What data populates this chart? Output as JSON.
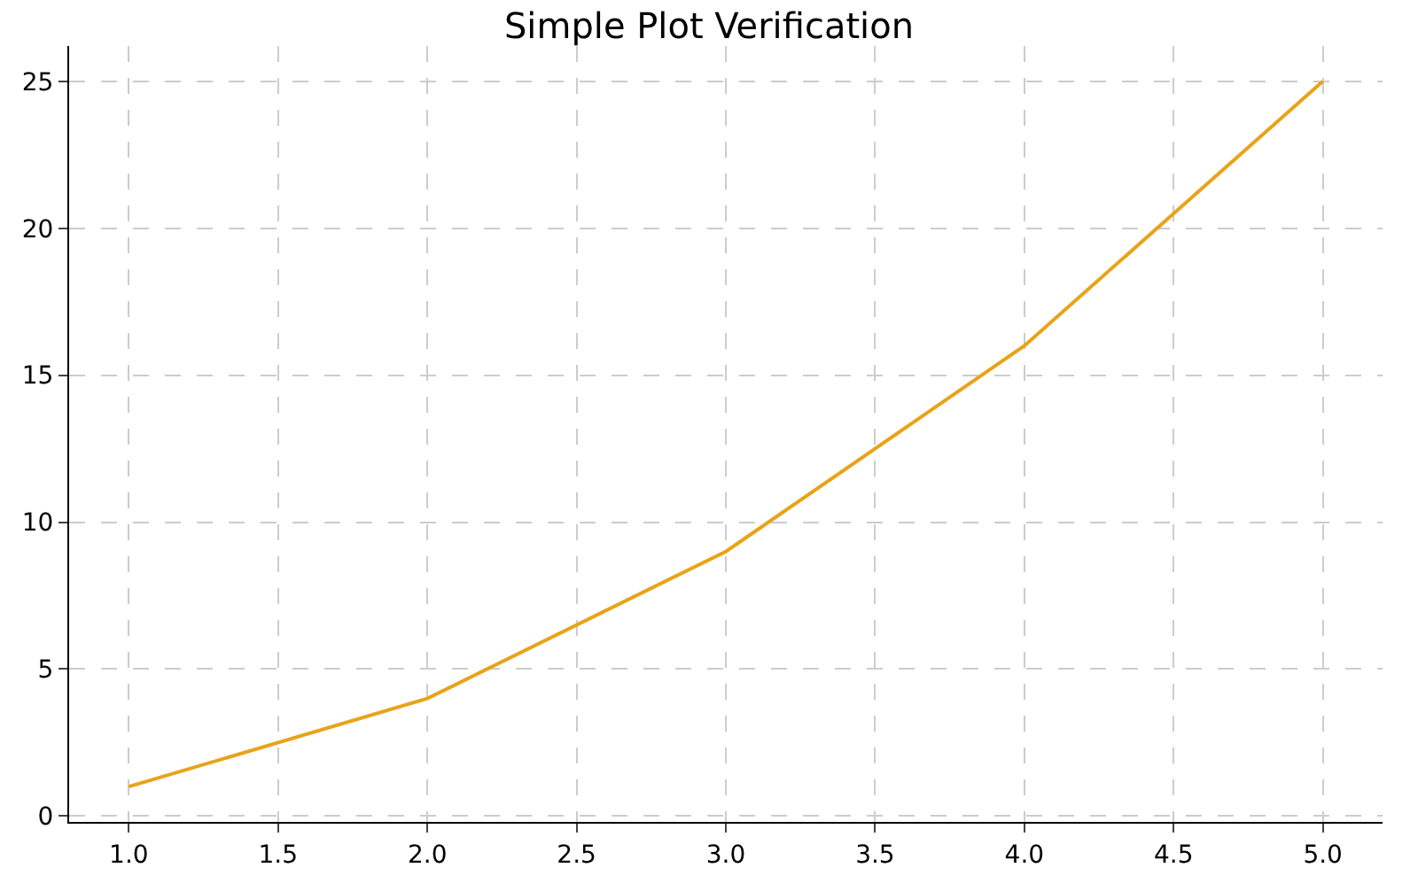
{
  "chart_data": {
    "type": "line",
    "title": "Simple Plot Verification",
    "x": [
      1,
      2,
      3,
      4,
      5
    ],
    "series": [
      {
        "color": "#e8a317",
        "values": [
          1,
          4,
          9,
          16,
          25
        ]
      }
    ],
    "xlim": [
      0.8,
      5.2
    ],
    "xticks": [
      {
        "value": 1,
        "label": "1.0"
      },
      {
        "value": 1.5,
        "label": "1.5"
      },
      {
        "value": 2,
        "label": "2.0"
      },
      {
        "value": 2.5,
        "label": "2.5"
      },
      {
        "value": 3,
        "label": "3.0"
      },
      {
        "value": 3.5,
        "label": "3.5"
      },
      {
        "value": 4,
        "label": "4.0"
      },
      {
        "value": 4.5,
        "label": "4.5"
      },
      {
        "value": 5,
        "label": "5.0"
      }
    ],
    "ylim": [
      -0.2,
      26.2
    ],
    "yticks": [
      0,
      5,
      10,
      15,
      20,
      25
    ],
    "grid": true,
    "line_style": "solid",
    "marker": "none"
  }
}
